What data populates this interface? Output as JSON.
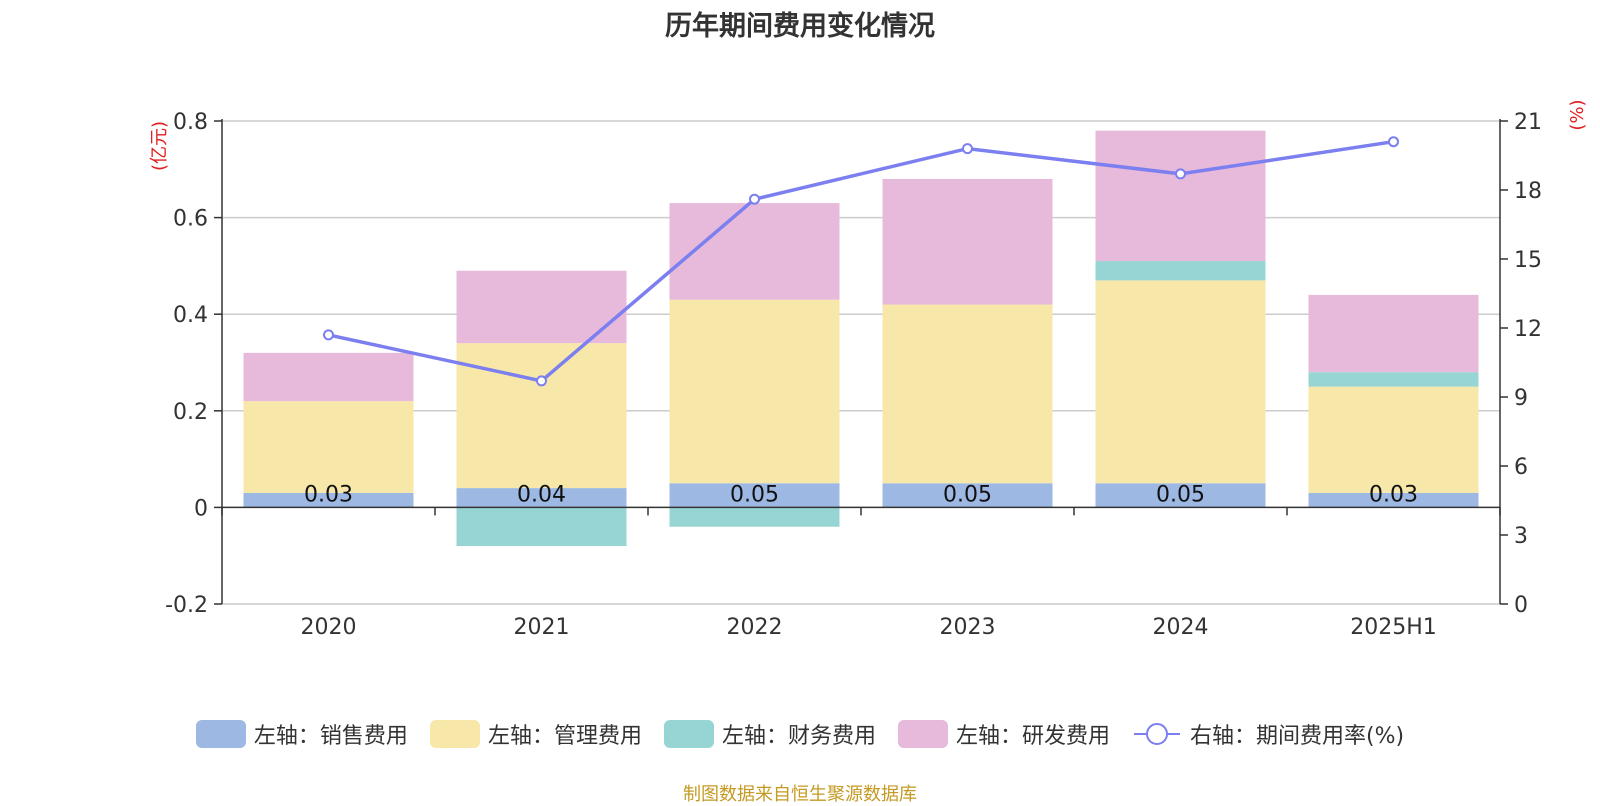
{
  "chart_data": {
    "type": "bar",
    "title": "历年期间费用变化情况",
    "categories": [
      "2020",
      "2021",
      "2022",
      "2023",
      "2024",
      "2025H1"
    ],
    "y_left": {
      "label": "(亿元)",
      "ylim": [
        -0.2,
        0.8
      ],
      "ticks": [
        "-0.2",
        "0",
        "0.2",
        "0.4",
        "0.6",
        "0.8"
      ]
    },
    "y_right": {
      "label": "(%)",
      "ylim": [
        0,
        21
      ],
      "ticks": [
        "0",
        "3",
        "6",
        "9",
        "12",
        "15",
        "18",
        "21"
      ]
    },
    "series": [
      {
        "name": "左轴：销售费用",
        "type": "bar",
        "color": "#9db8e3",
        "values": [
          0.03,
          0.04,
          0.05,
          0.05,
          0.05,
          0.03
        ],
        "labels": [
          "0.03",
          "0.04",
          "0.05",
          "0.05",
          "0.05",
          "0.03"
        ]
      },
      {
        "name": "左轴：管理费用",
        "type": "bar",
        "color": "#f7e7a8",
        "values": [
          0.19,
          0.3,
          0.38,
          0.37,
          0.42,
          0.22
        ]
      },
      {
        "name": "左轴：财务费用",
        "type": "bar",
        "color": "#97d4d4",
        "values": [
          0.0,
          -0.08,
          -0.04,
          0.0,
          0.04,
          0.03
        ]
      },
      {
        "name": "左轴：研发费用",
        "type": "bar",
        "color": "#e7b9da",
        "values": [
          0.1,
          0.15,
          0.2,
          0.26,
          0.27,
          0.16
        ]
      },
      {
        "name": "右轴：期间费用率(%)",
        "type": "line",
        "color": "#7b7ff0",
        "values": [
          11.7,
          9.7,
          17.6,
          19.8,
          18.7,
          20.1
        ]
      }
    ],
    "grid": true,
    "legend_position": "bottom"
  },
  "footer": {
    "source": "制图数据来自恒生聚源数据库"
  }
}
